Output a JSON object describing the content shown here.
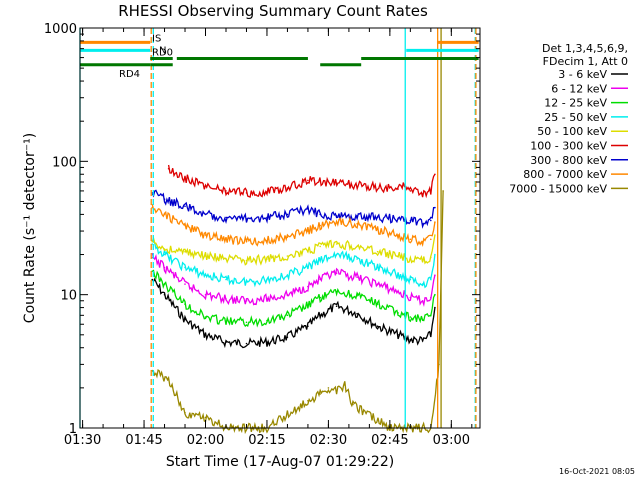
{
  "chart_data": {
    "type": "line",
    "title": "RHESSI Observing Summary Count Rates",
    "xlabel": "Start Time (17-Aug-07 01:29:22)",
    "ylabel": "Count Rate (s⁻¹ detector⁻¹)",
    "yscale": "log",
    "xlim": [
      "01:29:22",
      "03:07:00"
    ],
    "ylim": [
      1,
      1000
    ],
    "x_ticks": [
      "01:30",
      "01:45",
      "02:00",
      "02:15",
      "02:30",
      "02:45",
      "03:00"
    ],
    "y_ticks": [
      "1",
      "10",
      "100",
      "1000"
    ],
    "footer": "16-Oct-2021 08:05",
    "legend": {
      "placement": "right",
      "header": [
        "Det 1,3,4,5,6,9,",
        "FDecim 1, Att 0"
      ],
      "entries": [
        {
          "label": "3 - 6 keV",
          "color": "#000000"
        },
        {
          "label": "6 - 12 keV",
          "color": "#ee00ee"
        },
        {
          "label": "12 - 25 keV",
          "color": "#00dd00"
        },
        {
          "label": "25 - 50 keV",
          "color": "#00eeee"
        },
        {
          "label": "50 - 100 keV",
          "color": "#dddd00"
        },
        {
          "label": "100 - 300 keV",
          "color": "#dd0000"
        },
        {
          "label": "300 - 800 keV",
          "color": "#0000cc"
        },
        {
          "label": "800 - 7000 keV",
          "color": "#ff8800"
        },
        {
          "label": "7000 - 15000 keV",
          "color": "#998800"
        }
      ]
    },
    "flags": [
      {
        "label": "IS",
        "color": "#ff8800",
        "level": 780,
        "segments": [
          [
            "01:29:22",
            "01:46:30"
          ],
          [
            "02:56:30",
            "03:06:40"
          ]
        ]
      },
      {
        "label": "N",
        "color": "#00eeee",
        "level": 680,
        "segments": [
          [
            "01:29:22",
            "01:46:30"
          ],
          [
            "02:49:00",
            "03:06:40"
          ]
        ]
      },
      {
        "label": "RD0",
        "color": "#007700",
        "level": 590,
        "segments": [
          [
            "01:46:30",
            "01:52:00"
          ],
          [
            "01:53:00",
            "02:25:00"
          ],
          [
            "02:38:00",
            "03:06:40"
          ]
        ]
      },
      {
        "label": "RD4",
        "color": "#007700",
        "level": 530,
        "segments": [
          [
            "01:29:22",
            "01:46:30"
          ],
          [
            "01:46:30",
            "01:52:00"
          ],
          [
            "02:28:00",
            "02:38:00"
          ]
        ]
      }
    ],
    "vlines": [
      {
        "time": "01:29:22",
        "color": "#00eeee",
        "style": "solid"
      },
      {
        "time": "01:46:45",
        "color": "#ff8800",
        "style": "dashed"
      },
      {
        "time": "01:47:15",
        "color": "#00eeee",
        "style": "dashed"
      },
      {
        "time": "02:48:45",
        "color": "#00eeee",
        "style": "solid"
      },
      {
        "time": "02:56:40",
        "color": "#ff8800",
        "style": "solid"
      },
      {
        "time": "02:57:30",
        "color": "#998800",
        "style": "solid"
      },
      {
        "time": "03:05:50",
        "color": "#00eeee",
        "style": "dashed"
      },
      {
        "time": "03:06:00",
        "color": "#ff8800",
        "style": "dashed"
      }
    ],
    "series": [
      {
        "name": "3 - 6 keV",
        "color": "#000000",
        "x": [
          "01:47",
          "01:50",
          "01:55",
          "02:00",
          "02:05",
          "02:10",
          "02:15",
          "02:20",
          "02:25",
          "02:28",
          "02:32",
          "02:37",
          "02:42",
          "02:47",
          "02:50",
          "02:53",
          "02:55",
          "02:56"
        ],
        "y": [
          13,
          10,
          6.5,
          5.0,
          4.4,
          4.3,
          4.4,
          4.8,
          5.8,
          7.0,
          8.2,
          7.2,
          5.8,
          5.0,
          4.6,
          4.5,
          5.0,
          8
        ]
      },
      {
        "name": "6 - 12 keV",
        "color": "#ee00ee",
        "x": [
          "01:47",
          "01:50",
          "01:55",
          "02:00",
          "02:05",
          "02:10",
          "02:15",
          "02:20",
          "02:25",
          "02:28",
          "02:32",
          "02:37",
          "02:42",
          "02:47",
          "02:50",
          "02:53",
          "02:55",
          "02:56"
        ],
        "y": [
          19,
          16,
          12,
          10,
          9.3,
          9.0,
          9.3,
          10,
          11.5,
          13,
          14.5,
          13.5,
          12,
          10.5,
          9.5,
          9.0,
          9.5,
          14
        ]
      },
      {
        "name": "12 - 25 keV",
        "color": "#00dd00",
        "x": [
          "01:47",
          "01:50",
          "01:55",
          "02:00",
          "02:05",
          "02:10",
          "02:15",
          "02:20",
          "02:25",
          "02:28",
          "02:32",
          "02:37",
          "02:42",
          "02:47",
          "02:50",
          "02:53",
          "02:55",
          "02:56"
        ],
        "y": [
          15,
          12,
          8.5,
          6.8,
          6.3,
          6.2,
          6.4,
          7.0,
          8.3,
          9.5,
          10.5,
          9.8,
          8.5,
          7.3,
          6.8,
          6.5,
          7.0,
          10
        ]
      },
      {
        "name": "25 - 50 keV",
        "color": "#00eeee",
        "x": [
          "01:47",
          "01:50",
          "01:55",
          "02:00",
          "02:05",
          "02:10",
          "02:15",
          "02:20",
          "02:25",
          "02:28",
          "02:32",
          "02:37",
          "02:42",
          "02:47",
          "02:50",
          "02:53",
          "02:55",
          "02:56"
        ],
        "y": [
          24,
          20,
          16,
          14,
          13,
          12.5,
          13,
          14,
          16,
          18,
          20,
          18.5,
          16,
          14,
          13,
          12,
          13,
          20
        ]
      },
      {
        "name": "50 - 100 keV",
        "color": "#dddd00",
        "x": [
          "01:47",
          "01:50",
          "01:55",
          "02:00",
          "02:05",
          "02:10",
          "02:15",
          "02:20",
          "02:25",
          "02:28",
          "02:32",
          "02:37",
          "02:42",
          "02:47",
          "02:50",
          "02:53",
          "02:55",
          "02:56"
        ],
        "y": [
          25,
          22,
          21,
          19.5,
          18.5,
          18,
          18.5,
          19.5,
          21,
          23,
          24,
          23,
          21,
          19.5,
          18.5,
          18,
          19,
          28
        ]
      },
      {
        "name": "100 - 300 keV",
        "color": "#dd0000",
        "x": [
          "01:51",
          "01:52",
          "01:55",
          "02:00",
          "02:05",
          "02:10",
          "02:15",
          "02:20",
          "02:24",
          "02:25",
          "02:47",
          "02:48",
          "02:50",
          "02:53",
          "02:55",
          "02:56"
        ],
        "y": [
          88,
          85,
          75,
          65,
          60,
          58,
          59,
          63,
          70,
          72,
          62,
          65,
          60,
          57,
          60,
          80
        ]
      },
      {
        "name": "300 - 800 keV",
        "color": "#0000cc",
        "x": [
          "01:47",
          "01:50",
          "01:55",
          "02:00",
          "02:05",
          "02:10",
          "02:15",
          "02:20",
          "02:25",
          "02:28",
          "02:32",
          "02:37",
          "02:42",
          "02:47",
          "02:50",
          "02:53",
          "02:55",
          "02:56"
        ],
        "y": [
          58,
          52,
          46,
          40,
          38,
          37,
          38,
          40,
          44,
          40,
          39,
          39,
          38,
          37,
          36,
          34,
          36,
          45
        ]
      },
      {
        "name": "800 - 7000 keV",
        "color": "#ff8800",
        "x": [
          "01:47",
          "01:50",
          "01:55",
          "02:00",
          "02:05",
          "02:10",
          "02:15",
          "02:20",
          "02:25",
          "02:28",
          "02:32",
          "02:37",
          "02:42",
          "02:47",
          "02:50",
          "02:53",
          "02:55",
          "02:56"
        ],
        "y": [
          45,
          40,
          33,
          28,
          26,
          25,
          25.5,
          27,
          30,
          33,
          35,
          34,
          31,
          28,
          26,
          25,
          26,
          35
        ]
      },
      {
        "name": "7000 - 15000 keV",
        "color": "#998800",
        "x": [
          "01:47",
          "01:51",
          "01:55",
          "02:00",
          "02:05",
          "02:15",
          "02:25",
          "02:28",
          "02:30",
          "02:32",
          "02:34",
          "02:36",
          "02:45",
          "02:55",
          "02:57",
          "02:58"
        ],
        "y": [
          2.7,
          2.3,
          1.3,
          1.2,
          1.0,
          1.0,
          1.6,
          1.8,
          2.0,
          1.9,
          2.1,
          1.5,
          1.0,
          1.0,
          3.0,
          60
        ]
      }
    ]
  }
}
